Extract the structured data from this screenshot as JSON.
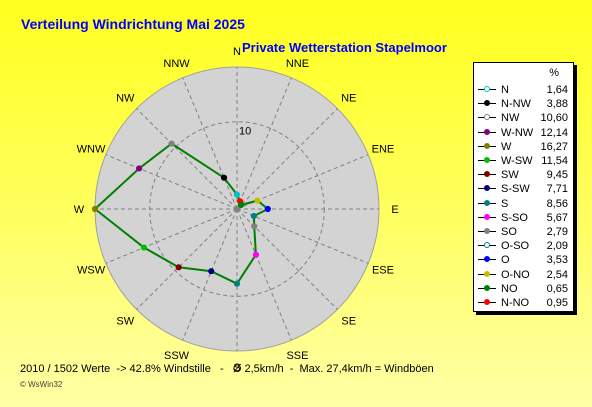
{
  "title": "Verteilung Windrichtung   Mai 2025",
  "subtitle": "Private Wetterstation Stapelmoor",
  "footer": "2010 / 1502 Werte  -> 42.8% Windstille   -   Ø 2,5km/h  -  Max. 27,4km/h = Windböen",
  "brand": "© WsWin32",
  "colors": {
    "background_top": "#ffff1e",
    "background_bottom": "#ffffa6",
    "title": "#0000ff",
    "plot_area": "#d3d3d3",
    "series_line": "#008000",
    "legend_background": "#ffffff"
  },
  "legend": {
    "unit": "%",
    "items": [
      {
        "label": "N",
        "value": "1,64",
        "color": "#00c0c0",
        "hollow": true
      },
      {
        "label": "N-NW",
        "value": "3,88",
        "color": "#000000",
        "hollow": false
      },
      {
        "label": "NW",
        "value": "10,60",
        "color": "#808080",
        "hollow": true
      },
      {
        "label": "W-NW",
        "value": "12,14",
        "color": "#800080",
        "hollow": false
      },
      {
        "label": "W",
        "value": "16,27",
        "color": "#808000",
        "hollow": false
      },
      {
        "label": "W-SW",
        "value": "11,54",
        "color": "#00c000",
        "hollow": false
      },
      {
        "label": "SW",
        "value": "9,45",
        "color": "#800000",
        "hollow": false
      },
      {
        "label": "S-SW",
        "value": "7,71",
        "color": "#000080",
        "hollow": false
      },
      {
        "label": "S",
        "value": "8,56",
        "color": "#008080",
        "hollow": false
      },
      {
        "label": "S-SO",
        "value": "5,67",
        "color": "#ff00ff",
        "hollow": false
      },
      {
        "label": "SO",
        "value": "2,79",
        "color": "#808080",
        "hollow": false
      },
      {
        "label": "O-SO",
        "value": "2,09",
        "color": "#008080",
        "hollow": true
      },
      {
        "label": "O",
        "value": "3,53",
        "color": "#0000ff",
        "hollow": false
      },
      {
        "label": "O-NO",
        "value": "2,54",
        "color": "#c0c000",
        "hollow": false
      },
      {
        "label": "NO",
        "value": "0,65",
        "color": "#008000",
        "hollow": false
      },
      {
        "label": "N-NO",
        "value": "0,95",
        "color": "#ff0000",
        "hollow": false
      }
    ]
  },
  "chart_data": {
    "type": "radar",
    "directions": [
      "N",
      "NNE",
      "NE",
      "ENE",
      "E",
      "ESE",
      "SE",
      "SSE",
      "S",
      "SSW",
      "SW",
      "WSW",
      "W",
      "WNW",
      "NW",
      "NNW"
    ],
    "values": [
      1.64,
      0.95,
      0.65,
      2.54,
      3.53,
      2.09,
      2.79,
      5.67,
      8.56,
      7.71,
      9.45,
      11.54,
      16.27,
      12.14,
      10.6,
      3.88
    ],
    "marker_colors": [
      "#00c0c0",
      "#ff0000",
      "#008000",
      "#c0c000",
      "#0000ff",
      "#008080",
      "#808080",
      "#ff00ff",
      "#008080",
      "#000080",
      "#800000",
      "#00c000",
      "#808000",
      "#800080",
      "#808080",
      "#000000"
    ],
    "unit": "%",
    "radial_max": 16.27,
    "radial_tick_labels": [
      "10"
    ],
    "radial_tick_values": [
      10
    ],
    "grid": true
  }
}
